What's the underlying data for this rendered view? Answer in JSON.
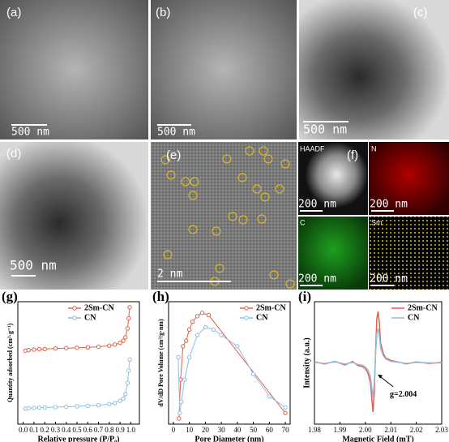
{
  "figure": {
    "panels": [
      {
        "label": "(a)",
        "scale": "500 nm"
      },
      {
        "label": "(b)",
        "scale": "500 nm"
      },
      {
        "label": "(c)",
        "scale": "500 nm"
      },
      {
        "label": "(d)",
        "scale": "500 nm"
      },
      {
        "label": "(e)",
        "scale": "2 nm"
      },
      {
        "label": "(f)"
      }
    ],
    "maps": [
      {
        "label": "HAADF",
        "scale": "200 nm"
      },
      {
        "label": "N",
        "scale": "200 nm"
      },
      {
        "label": "C",
        "scale": "200 nm"
      },
      {
        "label": "Sm",
        "scale": "200 nm"
      }
    ]
  },
  "chart_data": [
    {
      "type": "line",
      "panel": "(g)",
      "xlabel": "Relative pressure (P/P₀)",
      "ylabel": "Quantity adsorbed (cm³·g⁻¹)",
      "legend": "upper left",
      "xlim": [
        -0.05,
        1.08
      ],
      "ylim": [
        0,
        110
      ],
      "xticks": [
        {
          "value": 0,
          "label": "0.0"
        },
        0.1,
        0.2,
        0.3,
        0.4,
        0.5,
        0.6,
        0.7,
        0.8,
        0.9,
        {
          "value": 1,
          "label": "1.0"
        }
      ],
      "x": [
        0.02,
        0.05,
        0.1,
        0.15,
        0.2,
        0.3,
        0.4,
        0.5,
        0.6,
        0.7,
        0.8,
        0.85,
        0.9,
        0.93,
        0.95,
        0.97,
        0.98,
        0.99
      ],
      "series": [
        {
          "name": "2Sm-CN",
          "color": "#e0604a",
          "values": [
            66,
            66.5,
            67,
            67.3,
            67.5,
            68,
            68.3,
            68.6,
            69,
            69.5,
            70.5,
            71.5,
            73,
            75,
            78,
            86,
            95,
            105
          ]
        },
        {
          "name": "CN",
          "color": "#8fbfe0",
          "values": [
            14,
            14.3,
            14.6,
            14.8,
            15,
            15.3,
            15.6,
            16,
            16.5,
            17,
            18,
            19,
            21,
            23,
            27,
            37,
            48,
            58
          ]
        }
      ]
    },
    {
      "type": "line",
      "panel": "(h)",
      "xlabel": "Pore Diameter (nm)",
      "ylabel": "dV/dD Pore Volume (cm³/g·nm)",
      "legend": "upper right",
      "xlim": [
        -3,
        73
      ],
      "ylim": [
        0,
        110
      ],
      "xticks": [
        0,
        10,
        20,
        30,
        40,
        50,
        60,
        70
      ],
      "series": [
        {
          "name": "2Sm-CN",
          "color": "#e0604a",
          "x": [
            3.5,
            4.5,
            6,
            8,
            10,
            12,
            15,
            18,
            22,
            70
          ],
          "values": [
            5,
            40,
            70,
            75,
            85,
            92,
            97,
            100,
            98,
            10
          ]
        },
        {
          "name": "CN",
          "color": "#8fbfe0",
          "x": [
            3,
            4,
            5,
            7,
            10,
            15,
            20,
            25,
            30,
            40,
            50,
            60,
            70
          ],
          "values": [
            60,
            10,
            20,
            40,
            60,
            80,
            87,
            85,
            80,
            70,
            45,
            25,
            15
          ]
        }
      ]
    },
    {
      "type": "line",
      "panel": "(i)",
      "xlabel": "Magnetic Field (mT)",
      "ylabel": "Intensity (a.u.)",
      "legend": "upper right",
      "annotation": "g=2.004",
      "xlim": [
        1.98,
        2.03
      ],
      "ylim": [
        -1.25,
        1.25
      ],
      "xticks": [
        1.98,
        1.99,
        {
          "value": 2,
          "label": "2.00"
        },
        2.01,
        2.02,
        2.03
      ],
      "x": [
        1.98,
        1.984,
        1.988,
        1.992,
        1.995,
        1.997,
        1.999,
        2.0,
        2.001,
        2.002,
        2.0025,
        2.003,
        2.0035,
        2.004,
        2.0045,
        2.005,
        2.0055,
        2.006,
        2.007,
        2.008,
        2.01,
        2.012,
        2.016,
        2.02,
        2.025,
        2.03
      ],
      "series": [
        {
          "name": "2Sm-CN",
          "color": "#e0604a",
          "values": [
            0.02,
            -0.02,
            0.03,
            -0.04,
            0.03,
            -0.05,
            -0.08,
            -0.12,
            -0.2,
            -0.4,
            -0.7,
            -1.0,
            -0.6,
            0.2,
            0.9,
            1.05,
            0.8,
            0.4,
            0.2,
            0.1,
            0.05,
            0.03,
            -0.02,
            0.02,
            -0.01,
            0.01
          ]
        },
        {
          "name": "CN",
          "color": "#8fbfe0",
          "values": [
            0.01,
            -0.01,
            0.02,
            -0.02,
            0.01,
            -0.03,
            -0.05,
            -0.08,
            -0.14,
            -0.28,
            -0.5,
            -0.7,
            -0.4,
            0.15,
            0.6,
            0.7,
            0.55,
            0.3,
            0.15,
            0.08,
            0.03,
            0.02,
            -0.01,
            0.01,
            0,
            0
          ]
        }
      ]
    }
  ]
}
